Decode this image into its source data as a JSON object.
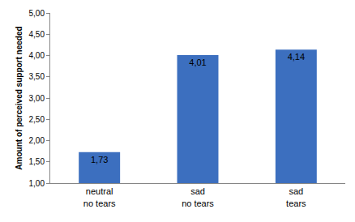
{
  "chart_data": {
    "type": "bar",
    "y_label": "Amount of perceived support needed",
    "categories": [
      [
        "neutral",
        "no tears"
      ],
      [
        "sad",
        "no tears"
      ],
      [
        "sad",
        "tears"
      ]
    ],
    "values": [
      1.73,
      4.01,
      4.14
    ],
    "value_labels": [
      "1,73",
      "4,01",
      "4,14"
    ],
    "data_labels": true,
    "color": "#3c6fbf",
    "ylim": [
      1,
      5
    ],
    "yticks": [
      {
        "value": 1,
        "label": "1,00"
      },
      {
        "value": 1.5,
        "label": "1,50"
      },
      {
        "value": 2,
        "label": "2,00"
      },
      {
        "value": 2.5,
        "label": "2,50"
      },
      {
        "value": 3,
        "label": "3,00"
      },
      {
        "value": 3.5,
        "label": "3,50"
      },
      {
        "value": 4,
        "label": "4,00"
      },
      {
        "value": 4.5,
        "label": "4,50"
      },
      {
        "value": 5,
        "label": "5,00"
      }
    ],
    "grid": false
  }
}
